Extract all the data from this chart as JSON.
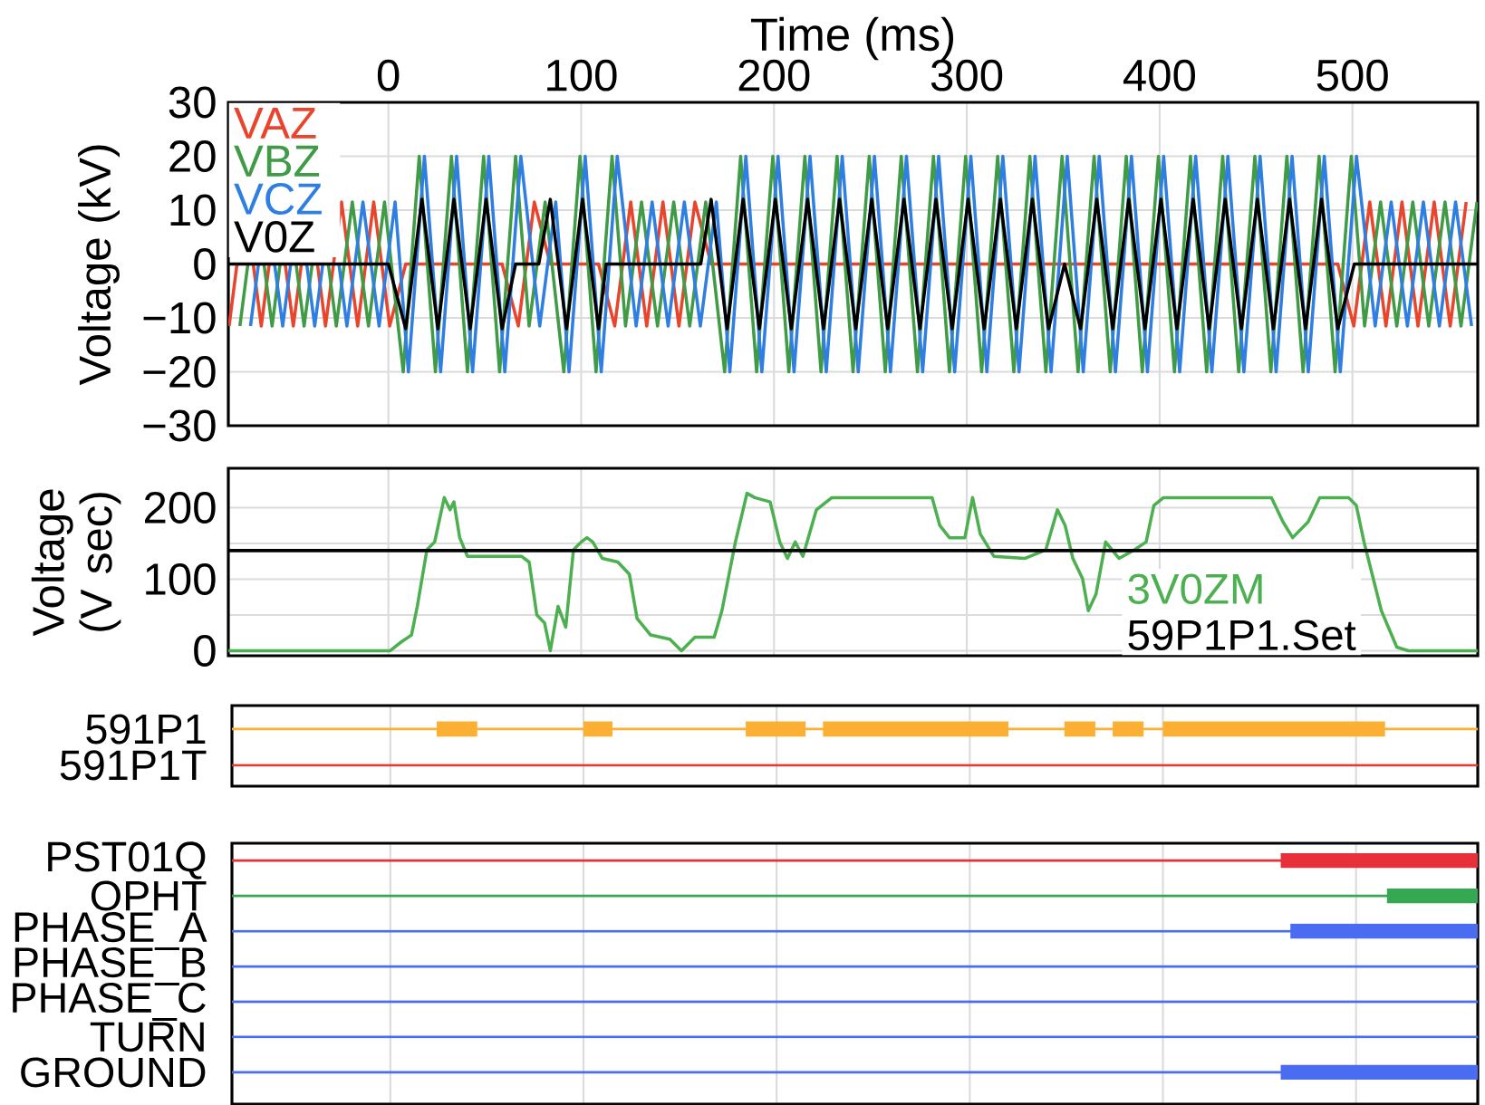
{
  "chart_data": [
    {
      "type": "line",
      "xlabel": "Time (ms)",
      "ylabel": "Voltage (kV)",
      "xlim": [
        -83,
        565
      ],
      "xticks": [
        0,
        100,
        200,
        300,
        400,
        500
      ],
      "ylim": [
        -30,
        30
      ],
      "yticks": [
        {
          "value": -30,
          "label": "−30"
        },
        {
          "value": -20,
          "label": "−20"
        },
        {
          "value": -10,
          "label": "−10"
        },
        0,
        10,
        20,
        30
      ],
      "grid": true,
      "legend": "top left",
      "series": [
        {
          "name": "VAZ",
          "color": "#e8452c",
          "x": [
            -82.6,
            -78.5,
            -74.3,
            -70.1,
            -65.9,
            -61.8,
            -57.6,
            -53.5,
            -49.3,
            -45.1,
            -40.9,
            -36.8,
            -32.6,
            -24.3,
            -15.9,
            -7.6,
            0.7,
            9.0,
            59.0,
            67.4,
            75.7,
            84.0,
            109.0,
            117.4,
            125.7,
            134.0,
            142.4,
            150.7,
            159.0,
            167.4,
            492.4,
            500.7,
            509.0,
            517.4,
            525.7,
            534.0,
            542.4,
            550.7,
            559.0
          ],
          "values": [
            -11.5,
            0,
            null,
            0,
            -11.5,
            0,
            null,
            0,
            -11.5,
            0,
            null,
            0,
            -11.5,
            11.5,
            -11.5,
            11.5,
            -11.5,
            0,
            0,
            -11.5,
            11.5,
            0,
            0,
            -11.5,
            11.5,
            -11.5,
            11.5,
            -11.5,
            11.5,
            0,
            0,
            -11.5,
            11.5,
            -11.5,
            11.5,
            -11.5,
            11.5,
            -11.5,
            11.5
          ]
        },
        {
          "name": "VBZ",
          "color": "#3f9b46",
          "x": [
            -77.0,
            -72.85,
            -68.7,
            -64.5,
            -60.3,
            -56.15,
            -52.0,
            -47.85,
            -43.7,
            -39.5,
            -35.3,
            -31.15,
            -27.0,
            -18.7,
            -10.3,
            -2.0,
            7.7,
            16.0,
            24.4,
            32.7,
            41.0,
            49.4,
            57.7,
            66.0,
            73.0,
            81.3,
            91.0,
            99.4,
            107.7,
            116.0,
            123.0,
            131.3,
            139.6,
            148.0,
            156.3,
            164.6,
            174.4,
            182.7,
            191.0,
            199.4,
            207.7,
            216.0,
            224.4,
            232.7,
            241.0,
            249.4,
            257.7,
            266.0,
            274.4,
            282.7,
            291.0,
            299.4,
            307.7,
            316.0,
            324.4,
            332.7,
            341.0,
            349.4,
            357.7,
            366.0,
            374.4,
            382.7,
            391.0,
            399.4,
            407.7,
            416.0,
            424.4,
            432.7,
            441.0,
            449.4,
            457.7,
            466.0,
            474.4,
            482.7,
            491.0,
            499.4,
            506.3,
            514.6,
            523.0,
            531.3,
            539.6,
            548.0,
            556.3,
            564.6
          ],
          "values": [
            -11.5,
            0,
            null,
            0,
            -11.5,
            0,
            null,
            0,
            -11.5,
            0,
            null,
            0,
            -11.5,
            11.5,
            -11.5,
            11.5,
            -20,
            20,
            -20,
            20,
            -20,
            20,
            -20,
            20,
            -11.5,
            11.5,
            -20,
            20,
            -20,
            20,
            -11.5,
            11.5,
            -11.5,
            11.5,
            -11.5,
            11.5,
            -20,
            20,
            -20,
            20,
            -20,
            20,
            -20,
            20,
            -20,
            20,
            -20,
            20,
            -20,
            20,
            -20,
            20,
            -20,
            20,
            -20,
            20,
            -20,
            20,
            -20,
            20,
            -20,
            20,
            -20,
            20,
            -20,
            20,
            -20,
            20,
            -20,
            20,
            -20,
            20,
            -20,
            20,
            -20,
            20,
            -11.5,
            11.5,
            -11.5,
            11.5,
            -11.5,
            11.5,
            -11.5,
            11.5
          ]
        },
        {
          "name": "VCZ",
          "color": "#2f7fe3",
          "x": [
            -71.5,
            -67.35,
            -63.2,
            -59.0,
            -54.8,
            -50.65,
            -46.5,
            -42.35,
            -38.2,
            -34.0,
            -29.8,
            -25.65,
            -21.5,
            -13.2,
            -4.8,
            3.5,
            10.4,
            18.7,
            27.1,
            35.4,
            43.7,
            52.1,
            60.4,
            68.7,
            78.5,
            86.8,
            93.7,
            102.1,
            110.4,
            118.7,
            128.5,
            136.8,
            145.1,
            153.5,
            161.8,
            170.1,
            177.1,
            185.4,
            193.7,
            202.1,
            210.4,
            218.7,
            227.1,
            235.4,
            243.7,
            252.1,
            260.4,
            268.7,
            277.1,
            285.4,
            293.7,
            302.1,
            310.4,
            318.7,
            327.1,
            335.4,
            343.7,
            352.1,
            360.4,
            368.7,
            377.1,
            385.4,
            393.7,
            402.1,
            410.4,
            418.7,
            427.1,
            435.4,
            443.7,
            452.1,
            460.4,
            468.7,
            477.1,
            485.4,
            493.7,
            502.1,
            511.8,
            520.1,
            528.5,
            536.8,
            545.1,
            553.5,
            561.8
          ],
          "values": [
            -11.5,
            0,
            null,
            0,
            -11.5,
            0,
            null,
            0,
            -11.5,
            0,
            null,
            0,
            -11.5,
            11.5,
            -11.5,
            11.5,
            -20,
            20,
            -20,
            20,
            -20,
            20,
            -20,
            20,
            -11.5,
            11.5,
            -20,
            20,
            -20,
            20,
            -11.5,
            11.5,
            -11.5,
            11.5,
            -11.5,
            11.5,
            -20,
            20,
            -20,
            20,
            -20,
            20,
            -20,
            20,
            -20,
            20,
            -20,
            20,
            -20,
            20,
            -20,
            20,
            -20,
            20,
            -20,
            20,
            -20,
            20,
            -20,
            20,
            -20,
            20,
            -20,
            20,
            -20,
            20,
            -20,
            20,
            -20,
            20,
            -20,
            20,
            -20,
            20,
            -20,
            20,
            -11.5,
            11.5,
            -11.5,
            11.5,
            -11.5,
            11.5,
            -11.5
          ]
        },
        {
          "name": "V0Z",
          "color": "#000000",
          "x": [
            -83,
            0,
            9.0,
            17.4,
            25.7,
            34.0,
            42.4,
            50.7,
            59.0,
            66,
            78,
            84.0,
            92.4,
            100.7,
            109.0,
            113,
            162,
            167.4,
            175.7,
            184.0,
            192.4,
            200.7,
            209.0,
            217.4,
            225.7,
            234.0,
            242.4,
            250.7,
            259.0,
            267.4,
            275.7,
            284.0,
            292.4,
            300.7,
            309.0,
            317.4,
            325.7,
            334.0,
            342.4,
            350.7,
            359.0,
            367.4,
            375.7,
            384.0,
            392.4,
            400.7,
            409.0,
            417.4,
            425.7,
            434.0,
            442.4,
            450.7,
            459.0,
            467.4,
            475.7,
            484.0,
            492.4,
            501,
            565
          ],
          "values": [
            0,
            0,
            -12,
            12,
            -12,
            12,
            -12,
            12,
            -12,
            0,
            0,
            12,
            -12,
            12,
            -12,
            0,
            0,
            12,
            -12,
            12,
            -12,
            12,
            -12,
            12,
            -12,
            12,
            -12,
            12,
            -12,
            12,
            -12,
            12,
            -12,
            12,
            -12,
            12,
            -12,
            12,
            -12,
            0,
            -12,
            12,
            -12,
            12,
            -12,
            12,
            -12,
            12,
            -12,
            12,
            -12,
            12,
            -12,
            12,
            -12,
            12,
            -12,
            0,
            0
          ]
        }
      ]
    },
    {
      "type": "line",
      "ylabel": "Voltage (V sec)",
      "xlim": [
        -83,
        565
      ],
      "xticks": [
        0,
        100,
        200,
        300,
        400,
        500
      ],
      "tick_labels": "y",
      "ylim": [
        -7,
        255
      ],
      "yticks": [
        0,
        {
          "value": 50,
          "label": null
        },
        100,
        {
          "value": 150,
          "label": null
        },
        200
      ],
      "grid": true,
      "legend": "bottom right",
      "ref_lines": [
        {
          "axis": "y",
          "value": 140,
          "label": "59P1P1.Set",
          "color": "#000000"
        }
      ],
      "series": [
        {
          "name": "3V0ZM",
          "color": "#4caf50",
          "x": [
            -83,
            1,
            6,
            12,
            15,
            20,
            24,
            29,
            32,
            34,
            37,
            41,
            50,
            69,
            73,
            77,
            81,
            84,
            88,
            92,
            96,
            100,
            103,
            106,
            111,
            119,
            125,
            129,
            136,
            146,
            152,
            159,
            169,
            173,
            180,
            186,
            190,
            198,
            203,
            207,
            211,
            215,
            222,
            230,
            282,
            286,
            291,
            299,
            303,
            307,
            314,
            330,
            341,
            347,
            351,
            355,
            360,
            363,
            367,
            372,
            379,
            387,
            393,
            397,
            402,
            458,
            464,
            469,
            477,
            483,
            498,
            502,
            506,
            515,
            523,
            529,
            565
          ],
          "values": [
            0,
            0,
            11,
            22,
            62,
            141,
            152,
            214,
            197,
            208,
            158,
            132,
            132,
            132,
            124,
            50,
            39,
            0,
            62,
            33,
            141,
            152,
            158,
            152,
            129,
            124,
            107,
            45,
            22,
            16,
            0,
            19,
            19,
            56,
            152,
            220,
            214,
            208,
            152,
            129,
            152,
            132,
            197,
            214,
            214,
            175,
            158,
            158,
            214,
            163,
            132,
            129,
            141,
            197,
            175,
            129,
            101,
            56,
            79,
            152,
            129,
            141,
            152,
            203,
            214,
            214,
            180,
            158,
            180,
            214,
            214,
            203,
            152,
            56,
            5,
            0,
            0
          ]
        }
      ]
    },
    {
      "type": "bar",
      "orientation": "horizontal",
      "categories": [
        "591P1",
        "591P1T"
      ],
      "xlim": [
        -82,
        563
      ],
      "xticks": [
        0,
        100,
        200,
        300,
        400,
        500
      ],
      "tick_labels": "y",
      "grid": "x",
      "ref_lines": [
        {
          "axis": "y",
          "value": "591P1",
          "color": "#fbb034"
        },
        {
          "axis": "y",
          "value": "591P1T",
          "color": "#e53935"
        }
      ],
      "series": [
        {
          "color": "#fbb034",
          "base": [
            24,
            null
          ],
          "values": [
            21,
            null
          ]
        },
        {
          "color": "#fbb034",
          "base": [
            100,
            null
          ],
          "values": [
            15,
            null
          ]
        },
        {
          "color": "#fbb034",
          "base": [
            184,
            null
          ],
          "values": [
            31,
            null
          ]
        },
        {
          "color": "#fbb034",
          "base": [
            224,
            null
          ],
          "values": [
            96,
            null
          ]
        },
        {
          "color": "#fbb034",
          "base": [
            349,
            null
          ],
          "values": [
            16,
            null
          ]
        },
        {
          "color": "#fbb034",
          "base": [
            374,
            null
          ],
          "values": [
            16,
            null
          ]
        },
        {
          "color": "#fbb034",
          "base": [
            400,
            null
          ],
          "values": [
            115,
            null
          ]
        }
      ]
    },
    {
      "type": "bar",
      "orientation": "horizontal",
      "categories": [
        "PST01Q",
        "OPHT",
        "PHASE_A",
        "PHASE_B",
        "PHASE_C",
        "TURN",
        "GROUND"
      ],
      "xlim": [
        -82,
        563
      ],
      "xticks": [
        0,
        100,
        200,
        300,
        400,
        500
      ],
      "tick_labels": "y",
      "grid": "x",
      "ref_lines": [
        {
          "axis": "y",
          "value": "PST01Q",
          "color": "#e8303a"
        },
        {
          "axis": "y",
          "value": "OPHT",
          "color": "#34a853"
        },
        {
          "axis": "y",
          "value": "PHASE_A",
          "color": "#4a6cf0"
        },
        {
          "axis": "y",
          "value": "PHASE_B",
          "color": "#4a6cf0"
        },
        {
          "axis": "y",
          "value": "PHASE_C",
          "color": "#4a6cf0"
        },
        {
          "axis": "y",
          "value": "TURN",
          "color": "#4a6cf0"
        },
        {
          "axis": "y",
          "value": "GROUND",
          "color": "#4a6cf0"
        }
      ],
      "series": [
        {
          "color": "#e8303a",
          "base": [
            461,
            null,
            null,
            null,
            null,
            null,
            null
          ],
          "values": [
            102,
            null,
            null,
            null,
            null,
            null,
            null
          ]
        },
        {
          "color": "#34a853",
          "base": [
            null,
            516,
            null,
            null,
            null,
            null,
            null
          ],
          "values": [
            null,
            47,
            null,
            null,
            null,
            null,
            null
          ]
        },
        {
          "color": "#4a6cf0",
          "base": [
            null,
            null,
            466,
            null,
            null,
            null,
            null
          ],
          "values": [
            null,
            null,
            97,
            null,
            null,
            null,
            null
          ]
        },
        {
          "color": "#4a6cf0",
          "base": [
            null,
            null,
            null,
            null,
            null,
            null,
            461
          ],
          "values": [
            null,
            null,
            null,
            null,
            null,
            null,
            102
          ]
        }
      ]
    }
  ]
}
